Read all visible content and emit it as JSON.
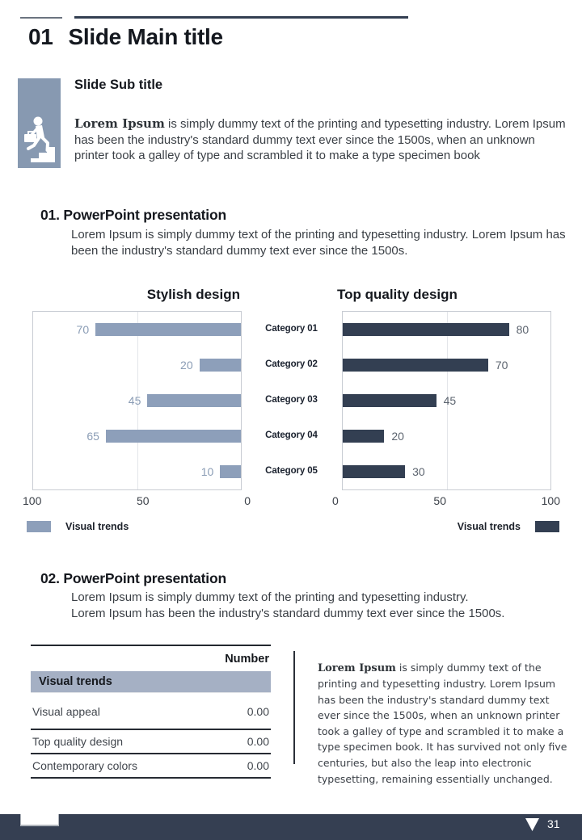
{
  "header": {
    "index": "01",
    "title": "Slide Main title"
  },
  "intro": {
    "icon": "person-climbing-stairs-icon",
    "subtitle": "Slide Sub title",
    "lead": "Lorem Ipsum",
    "body": " is simply dummy text of the printing and typesetting industry. Lorem Ipsum has been the industry's standard dummy text ever since the 1500s, when an unknown printer took a galley of type and scrambled it to make a type specimen book"
  },
  "section1": {
    "heading": "01. PowerPoint presentation",
    "body": "Lorem Ipsum is simply dummy text of the printing and typesetting industry. Lorem Ipsum has been the industry's standard dummy text ever since the 1500s."
  },
  "chart_data": [
    {
      "type": "bar",
      "title": "Stylish design",
      "orientation": "horizontal",
      "anchor": "right",
      "categories": [
        "Category 01",
        "Category 02",
        "Category 03",
        "Category 04",
        "Category 05"
      ],
      "values": [
        70,
        20,
        45,
        65,
        10
      ],
      "xlim": [
        0,
        100
      ],
      "x_ticks": [
        "100",
        "50",
        "0"
      ],
      "grid": "center-line",
      "bar_color": "#8d9fba",
      "value_label_color": "#8a9cb5",
      "legend": {
        "label": "Visual trends",
        "position": "bottom-left",
        "color": "#8d9fba"
      }
    },
    {
      "type": "bar",
      "title": "Top quality design",
      "orientation": "horizontal",
      "anchor": "left",
      "categories": [
        "Category 01",
        "Category 02",
        "Category 03",
        "Category 04",
        "Category 05"
      ],
      "values": [
        80,
        70,
        45,
        20,
        30
      ],
      "xlim": [
        0,
        100
      ],
      "x_ticks": [
        "0",
        "50",
        "100"
      ],
      "grid": "center-line",
      "bar_color": "#333f52",
      "value_label_color": "#5c646f",
      "legend": {
        "label": "Visual trends",
        "position": "bottom-right",
        "color": "#333f52"
      }
    }
  ],
  "section2": {
    "heading": "02. PowerPoint presentation",
    "line1": "Lorem Ipsum is simply dummy text of the printing and typesetting industry.",
    "line2": "Lorem Ipsum has been the industry's standard dummy text ever since the 1500s."
  },
  "table": {
    "value_header": "Number",
    "group_label": "Visual trends",
    "rows": [
      {
        "label": "Visual appeal",
        "value": "0.00"
      },
      {
        "label": "Top quality design",
        "value": "0.00"
      },
      {
        "label": "Contemporary colors",
        "value": "0.00"
      }
    ]
  },
  "aside": {
    "lead": "Lorem Ipsum",
    "body": " is simply dummy text of the printing and typesetting industry. Lorem Ipsum has been the industry's standard dummy text ever since the 1500s, when an unknown printer took a galley of type and scrambled it to make a type specimen book. It has survived not only five centuries, but also the leap into electronic typesetting, remaining essentially unchanged."
  },
  "footer": {
    "page_number": "31",
    "nav_icon": "down-triangle-icon"
  },
  "colors": {
    "accent_dark": "#333f52",
    "accent_light": "#8d9fba",
    "table_group_bg": "#a5b0c4",
    "icon_bg": "#8799b1"
  }
}
